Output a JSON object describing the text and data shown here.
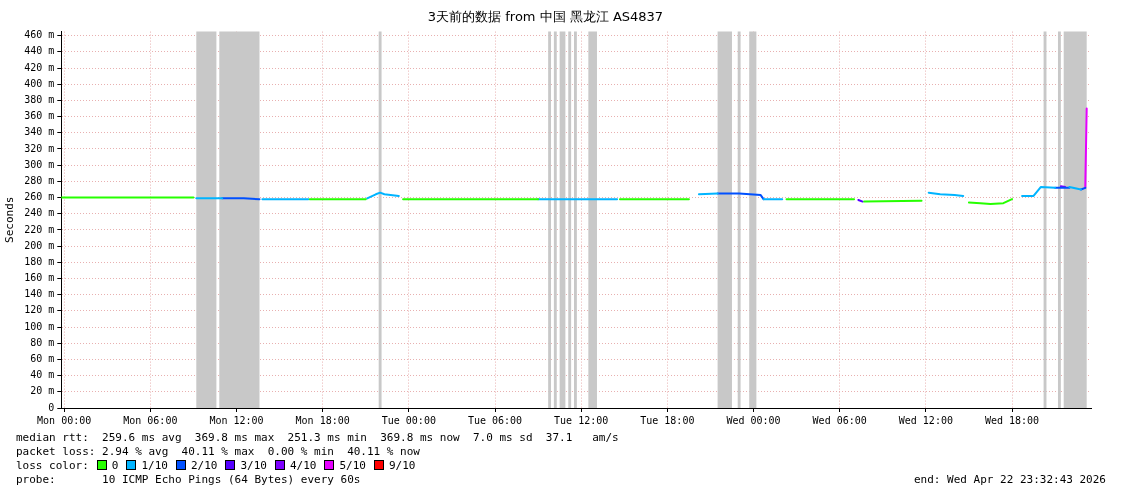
{
  "chart_data": {
    "type": "line",
    "title": "3天前的数据 from 中国 黑龙江 AS4837",
    "ylabel": "Seconds",
    "legend_title": "loss color:",
    "legend": "bottom",
    "grid": true,
    "xlim": [
      "2026-04-19T23:48",
      "2026-04-22T23:30"
    ],
    "xticks": [
      {
        "value": "2026-04-20T00:00",
        "label": "Mon 00:00"
      },
      {
        "value": "2026-04-20T06:00",
        "label": "Mon 06:00"
      },
      {
        "value": "2026-04-20T12:00",
        "label": "Mon 12:00"
      },
      {
        "value": "2026-04-20T18:00",
        "label": "Mon 18:00"
      },
      {
        "value": "2026-04-21T00:00",
        "label": "Tue 00:00"
      },
      {
        "value": "2026-04-21T06:00",
        "label": "Tue 06:00"
      },
      {
        "value": "2026-04-21T12:00",
        "label": "Tue 12:00"
      },
      {
        "value": "2026-04-21T18:00",
        "label": "Tue 18:00"
      },
      {
        "value": "2026-04-22T00:00",
        "label": "Wed 00:00"
      },
      {
        "value": "2026-04-22T06:00",
        "label": "Wed 06:00"
      },
      {
        "value": "2026-04-22T12:00",
        "label": "Wed 12:00"
      },
      {
        "value": "2026-04-22T18:00",
        "label": "Wed 18:00"
      }
    ],
    "ylim": [
      0,
      465
    ],
    "yticks": [
      0,
      {
        "value": 20,
        "label": "20 m"
      },
      {
        "value": 40,
        "label": "40 m"
      },
      {
        "value": 60,
        "label": "60 m"
      },
      {
        "value": 80,
        "label": "80 m"
      },
      {
        "value": 100,
        "label": "100 m"
      },
      {
        "value": 120,
        "label": "120 m"
      },
      {
        "value": 140,
        "label": "140 m"
      },
      {
        "value": 160,
        "label": "160 m"
      },
      {
        "value": 180,
        "label": "180 m"
      },
      {
        "value": 200,
        "label": "200 m"
      },
      {
        "value": 220,
        "label": "220 m"
      },
      {
        "value": 240,
        "label": "240 m"
      },
      {
        "value": 260,
        "label": "260 m"
      },
      {
        "value": 280,
        "label": "280 m"
      },
      {
        "value": 300,
        "label": "300 m"
      },
      {
        "value": 320,
        "label": "320 m"
      },
      {
        "value": 340,
        "label": "340 m"
      },
      {
        "value": 360,
        "label": "360 m"
      },
      {
        "value": 380,
        "label": "380 m"
      },
      {
        "value": 400,
        "label": "400 m"
      },
      {
        "value": 420,
        "label": "420 m"
      },
      {
        "value": 440,
        "label": "440 m"
      },
      {
        "value": 460,
        "label": "460 m"
      }
    ],
    "series": [
      {
        "name": "0",
        "color": "#26ff00",
        "x": [
          "2026-04-19T23:48",
          "2026-04-20T09:00",
          "2026-04-20T09:06",
          "2026-04-20T17:06",
          "2026-04-20T18:00",
          "2026-04-20T21:00",
          "2026-04-20T21:30",
          "2026-04-20T23:36",
          "2026-04-21T06:00",
          "2026-04-21T09:00",
          "2026-04-21T09:06",
          "2026-04-21T14:42",
          "2026-04-21T19:30",
          "2026-04-21T20:12",
          "2026-04-22T02:18",
          "2026-04-22T07:00",
          "2026-04-22T07:06",
          "2026-04-22T07:42",
          "2026-04-22T11:42",
          "2026-04-22T12:12",
          "2026-04-22T15:00",
          "2026-04-22T15:48",
          "2026-04-22T16:30",
          "2026-04-22T17:24",
          "2026-04-22T18:00"
        ],
        "values": [
          260,
          260,
          null,
          258,
          258,
          258,
          null,
          258,
          258,
          258,
          null,
          258,
          258,
          null,
          258,
          258,
          null,
          255,
          256,
          null,
          254,
          253,
          252,
          253,
          258
        ]
      },
      {
        "name": "1/10",
        "color": "#00b4ff",
        "x": [
          "2026-04-20T09:12",
          "2026-04-20T11:00",
          "2026-04-20T11:06",
          "2026-04-20T13:48",
          "2026-04-20T17:00",
          "2026-04-20T17:06",
          "2026-04-20T21:06",
          "2026-04-20T21:42",
          "2026-04-20T22:00",
          "2026-04-20T22:18",
          "2026-04-20T23:18",
          "2026-04-20T23:24",
          "2026-04-21T09:00",
          "2026-04-21T14:30",
          "2026-04-21T14:36",
          "2026-04-21T20:12",
          "2026-04-21T21:30",
          "2026-04-21T21:36",
          "2026-04-22T00:42",
          "2026-04-22T02:00",
          "2026-04-22T02:06",
          "2026-04-22T12:12",
          "2026-04-22T13:00",
          "2026-04-22T14:00",
          "2026-04-22T14:36",
          "2026-04-22T14:42",
          "2026-04-22T18:42",
          "2026-04-22T19:30",
          "2026-04-22T20:00",
          "2026-04-22T21:00",
          "2026-04-22T21:06",
          "2026-04-22T22:00",
          "2026-04-22T22:48"
        ],
        "values": [
          259,
          259,
          null,
          258,
          258,
          null,
          259,
          264,
          266,
          264,
          262,
          null,
          258,
          258,
          null,
          264,
          265,
          null,
          258,
          258,
          null,
          266,
          264,
          263,
          262,
          null,
          262,
          262,
          273,
          272,
          null,
          273,
          270
        ]
      },
      {
        "name": "2/10",
        "color": "#0050ff",
        "x": [
          "2026-04-20T11:00",
          "2026-04-20T12:30",
          "2026-04-20T13:36",
          "2026-04-20T13:42",
          "2026-04-21T21:30",
          "2026-04-21T23:00",
          "2026-04-22T00:30",
          "2026-04-22T00:42",
          "2026-04-22T00:48",
          "2026-04-22T21:00",
          "2026-04-22T22:00",
          "2026-04-22T22:06",
          "2026-04-22T22:48",
          "2026-04-22T23:06"
        ],
        "values": [
          259,
          259,
          258,
          null,
          265,
          265,
          263,
          258,
          null,
          272,
          272,
          null,
          270,
          272
        ]
      },
      {
        "name": "3/10",
        "color": "#5500ff",
        "x": [
          "2026-04-22T07:18",
          "2026-04-22T07:36"
        ],
        "values": [
          257,
          255
        ]
      },
      {
        "name": "4/10",
        "color": "#7e00ff",
        "x": [
          "2026-04-22T21:24",
          "2026-04-22T21:42"
        ],
        "values": [
          274,
          273
        ]
      },
      {
        "name": "5/10",
        "color": "#e600ff",
        "x": [
          "2026-04-22T23:06",
          "2026-04-22T23:12"
        ],
        "values": [
          272,
          370
        ]
      },
      {
        "name": "9/10",
        "color": "#ff0000"
      }
    ],
    "bands": [
      {
        "axis": "x",
        "from": "2026-04-20T09:12",
        "to": "2026-04-20T10:36",
        "color": "#c8c8c8"
      },
      {
        "axis": "x",
        "from": "2026-04-20T10:48",
        "to": "2026-04-20T13:36",
        "color": "#c8c8c8"
      },
      {
        "axis": "x",
        "from": "2026-04-20T21:54",
        "to": "2026-04-20T22:06",
        "color": "#c8c8c8"
      },
      {
        "axis": "x",
        "from": "2026-04-21T09:42",
        "to": "2026-04-21T09:54",
        "color": "#c8c8c8"
      },
      {
        "axis": "x",
        "from": "2026-04-21T10:06",
        "to": "2026-04-21T10:18",
        "color": "#c8c8c8"
      },
      {
        "axis": "x",
        "from": "2026-04-21T10:30",
        "to": "2026-04-21T10:54",
        "color": "#c8c8c8"
      },
      {
        "axis": "x",
        "from": "2026-04-21T11:06",
        "to": "2026-04-21T11:18",
        "color": "#c8c8c8"
      },
      {
        "axis": "x",
        "from": "2026-04-21T11:30",
        "to": "2026-04-21T11:42",
        "color": "#c8c8c8"
      },
      {
        "axis": "x",
        "from": "2026-04-21T12:30",
        "to": "2026-04-21T13:06",
        "color": "#c8c8c8"
      },
      {
        "axis": "x",
        "from": "2026-04-21T21:30",
        "to": "2026-04-21T22:30",
        "color": "#c8c8c8"
      },
      {
        "axis": "x",
        "from": "2026-04-21T22:54",
        "to": "2026-04-21T23:06",
        "color": "#c8c8c8"
      },
      {
        "axis": "x",
        "from": "2026-04-21T23:42",
        "to": "2026-04-22T00:12",
        "color": "#c8c8c8"
      },
      {
        "axis": "x",
        "from": "2026-04-22T20:12",
        "to": "2026-04-22T20:24",
        "color": "#c8c8c8"
      },
      {
        "axis": "x",
        "from": "2026-04-22T21:12",
        "to": "2026-04-22T21:24",
        "color": "#c8c8c8"
      },
      {
        "axis": "x",
        "from": "2026-04-22T21:36",
        "to": "2026-04-22T23:12",
        "color": "#c8c8c8"
      }
    ],
    "annotations": [
      "median rtt:  259.6 ms avg  369.8 ms max  251.3 ms min  369.8 ms now  7.0 ms sd  37.1   am/s",
      "packet loss: 2.94 % avg  40.11 % max  0.00 % min  40.11 % now",
      "probe:       10 ICMP Echo Pings (64 Bytes) every 60s",
      "end: Wed Apr 22 23:32:43 2026"
    ]
  }
}
